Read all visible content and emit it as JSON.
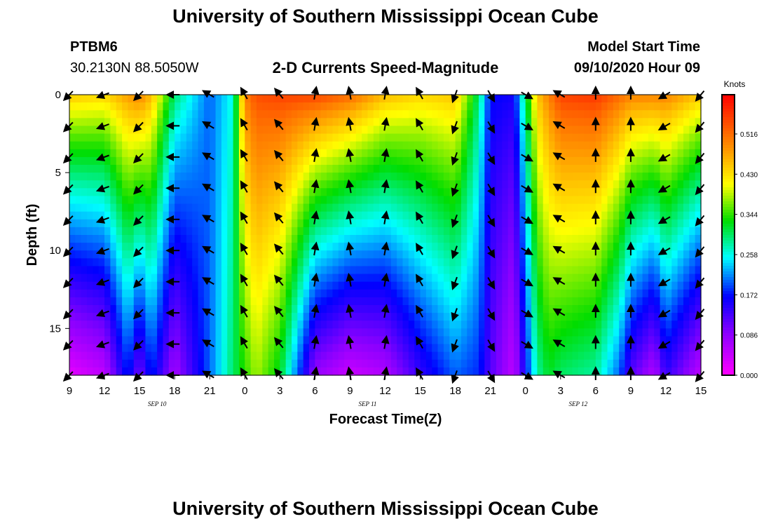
{
  "page": {
    "title_top": "University of Southern Mississippi Ocean Cube",
    "title_bottom": "University of Southern Mississippi Ocean Cube"
  },
  "header": {
    "station": "PTBM6",
    "location": "30.2130N 88.5050W",
    "chart_title": "2-D Currents Speed-Magnitude",
    "model_label": "Model Start Time",
    "model_time": "09/10/2020 Hour 09"
  },
  "chart_data": {
    "type": "heatmap",
    "title": "2-D Currents Speed-Magnitude",
    "xlabel": "Forecast Time(Z)",
    "ylabel": "Depth (ft)",
    "x_ticks": [
      "9",
      "12",
      "15",
      "18",
      "21",
      "0",
      "3",
      "6",
      "9",
      "12",
      "15",
      "18",
      "21",
      "0",
      "3",
      "6",
      "9",
      "12",
      "15"
    ],
    "date_labels": [
      {
        "label": "SEP 10",
        "tick_index": 2.5
      },
      {
        "label": "SEP 11",
        "tick_index": 8.5
      },
      {
        "label": "SEP 12",
        "tick_index": 14.5
      }
    ],
    "x_range_hours": [
      0,
      54
    ],
    "y_ticks": [
      0,
      5,
      10,
      15
    ],
    "y_range_ft": [
      0,
      18
    ],
    "colorbar": {
      "unit": "Knots",
      "ticks": [
        "0.000",
        "0.086",
        "0.172",
        "0.258",
        "0.344",
        "0.430",
        "0.516"
      ],
      "range": [
        0,
        0.6
      ]
    },
    "speed_profile": {
      "hours": [
        0,
        3,
        5,
        6,
        7,
        9,
        12,
        14,
        15,
        16,
        18,
        21,
        24,
        27,
        30,
        33,
        35,
        36,
        38,
        40,
        41,
        42,
        45,
        47,
        48,
        50,
        51,
        54
      ],
      "surface_knots": [
        0.45,
        0.44,
        0.48,
        0.5,
        0.46,
        0.3,
        0.2,
        0.26,
        0.5,
        0.54,
        0.55,
        0.55,
        0.52,
        0.46,
        0.44,
        0.45,
        0.3,
        0.17,
        0.16,
        0.45,
        0.5,
        0.55,
        0.56,
        0.52,
        0.5,
        0.5,
        0.5,
        0.45
      ],
      "bottom_knots": [
        0.02,
        0.05,
        0.18,
        0.1,
        0.18,
        0.07,
        0.2,
        0.3,
        0.34,
        0.38,
        0.32,
        0.08,
        0.04,
        0.06,
        0.14,
        0.2,
        0.18,
        0.12,
        0.05,
        0.28,
        0.32,
        0.3,
        0.28,
        0.2,
        0.12,
        0.06,
        0.14,
        0.05
      ]
    },
    "vectors": {
      "hour_step": 3,
      "depth_levels_ft": [
        0,
        2,
        4,
        6,
        8,
        10,
        12,
        14,
        16,
        18
      ],
      "direction_deg_by_hour": [
        [
          0,
          225
        ],
        [
          3,
          250
        ],
        [
          6,
          225
        ],
        [
          9,
          270
        ],
        [
          12,
          300
        ],
        [
          15,
          330
        ],
        [
          18,
          320
        ],
        [
          21,
          10
        ],
        [
          24,
          350
        ],
        [
          27,
          10
        ],
        [
          30,
          330
        ],
        [
          33,
          200
        ],
        [
          36,
          150
        ],
        [
          39,
          120
        ],
        [
          42,
          300
        ],
        [
          45,
          0
        ],
        [
          48,
          0
        ],
        [
          51,
          240
        ],
        [
          54,
          220
        ]
      ]
    }
  }
}
